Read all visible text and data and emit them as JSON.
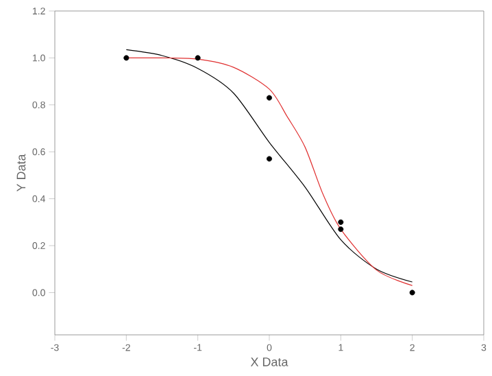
{
  "chart_data": {
    "type": "scatter",
    "xlabel": "X Data",
    "ylabel": "Y Data",
    "xlim": [
      -3,
      3
    ],
    "ylim": [
      -0.18,
      1.2
    ],
    "xticks": [
      -3,
      -2,
      -1,
      0,
      1,
      2,
      3
    ],
    "yticks": [
      {
        "value": 0,
        "label": "0.0"
      },
      {
        "value": 0.2,
        "label": "0.2"
      },
      {
        "value": 0.4,
        "label": "0.4"
      },
      {
        "value": 0.6,
        "label": "0.6"
      },
      {
        "value": 0.8,
        "label": "0.8"
      },
      {
        "value": 1,
        "label": "1.0"
      },
      {
        "value": 1.2,
        "label": "1.2"
      }
    ],
    "grid": false,
    "series": [
      {
        "marker": "circle",
        "color": "#000000",
        "x": [
          -2,
          -1,
          0,
          0,
          1,
          1,
          2
        ],
        "values": [
          1.0,
          1.0,
          0.83,
          0.57,
          0.3,
          0.27,
          0.0
        ]
      },
      {
        "type": "line",
        "color": "#000000",
        "marker": "none",
        "x": [
          -2,
          -1.5,
          -1,
          -0.5,
          0,
          0.5,
          1,
          1.5,
          2
        ],
        "values": [
          1.035,
          1.01,
          0.955,
          0.85,
          0.64,
          0.45,
          0.225,
          0.1,
          0.045
        ]
      },
      {
        "type": "line",
        "color": "#e03030",
        "marker": "none",
        "x": [
          -2,
          -1.5,
          -1,
          -0.5,
          0,
          0.25,
          0.5,
          0.75,
          1,
          1.5,
          2
        ],
        "values": [
          1.0,
          1.0,
          0.995,
          0.96,
          0.867,
          0.75,
          0.62,
          0.42,
          0.27,
          0.096,
          0.03
        ]
      }
    ]
  }
}
